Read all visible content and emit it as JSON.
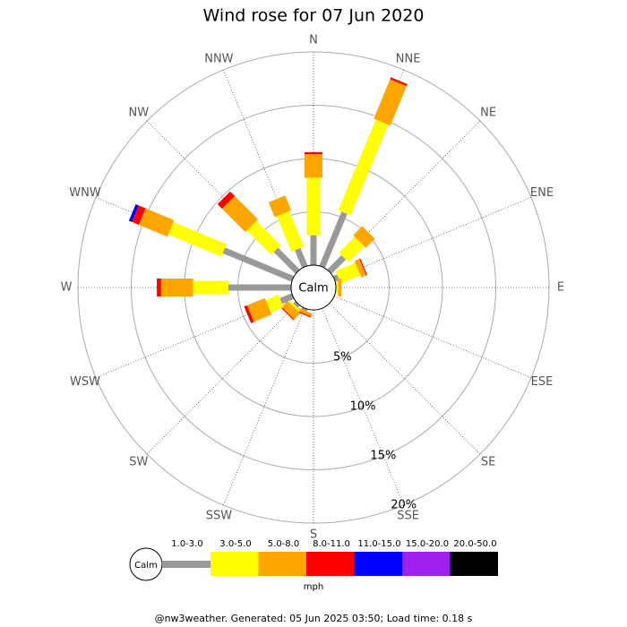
{
  "chart_data": {
    "type": "wind_rose",
    "title": "Wind rose for 07 Jun 2020",
    "categories": [
      "N",
      "NNE",
      "NE",
      "ENE",
      "E",
      "ESE",
      "SE",
      "SSE",
      "S",
      "SSW",
      "SW",
      "WSW",
      "W",
      "WNW",
      "NW",
      "NNW"
    ],
    "center_label": "Calm",
    "ylim": [
      0,
      20
    ],
    "yticks": [
      {
        "value": 5,
        "label": "5%"
      },
      {
        "value": 10,
        "label": "10%"
      },
      {
        "value": 15,
        "label": "15%"
      },
      {
        "value": 20,
        "label": "20%"
      }
    ],
    "grid": true,
    "legend_unit": "mph",
    "series": [
      {
        "name": "1.0-3.0",
        "color": "#999999",
        "values": [
          2.8,
          5.5,
          1.9,
          0.4,
          0,
          0,
          0,
          0,
          0,
          0.2,
          0.3,
          1.2,
          5.9,
          7.0,
          2.9,
          1.8
        ]
      },
      {
        "name": "3.0-5.0",
        "color": "#ffff00",
        "values": [
          5.4,
          9.2,
          2.1,
          2.0,
          0.2,
          0,
          0,
          0,
          0,
          0,
          0.2,
          1.3,
          3.3,
          5.4,
          3.2,
          3.6
        ]
      },
      {
        "name": "5.0-8.0",
        "color": "#ffa500",
        "values": [
          2.2,
          4.0,
          1.2,
          0.5,
          0.3,
          0,
          0,
          0,
          0,
          0.3,
          0.8,
          1.8,
          3.0,
          2.9,
          3.1,
          1.5
        ]
      },
      {
        "name": "8.0-11.0",
        "color": "#ff0000",
        "values": [
          0.2,
          0.2,
          0,
          0.1,
          0,
          0,
          0,
          0,
          0,
          0.1,
          0.1,
          0.3,
          0.4,
          0.7,
          0.6,
          0
        ]
      },
      {
        "name": "11.0-15.0",
        "color": "#0000ff",
        "values": [
          0,
          0,
          0,
          0,
          0,
          0,
          0,
          0,
          0,
          0,
          0,
          0,
          0,
          0.3,
          0,
          0
        ]
      },
      {
        "name": "15.0-20.0",
        "color": "#a020f0",
        "values": [
          0,
          0,
          0,
          0,
          0,
          0,
          0,
          0,
          0,
          0,
          0,
          0,
          0,
          0,
          0,
          0
        ]
      },
      {
        "name": "20.0-50.0",
        "color": "#000000",
        "values": [
          0,
          0,
          0,
          0,
          0,
          0,
          0,
          0,
          0,
          0,
          0,
          0,
          0,
          0,
          0,
          0
        ]
      }
    ],
    "footer": "@nw3weather. Generated: 05 Jun 2025 03:50; Load time: 0.18 s"
  }
}
